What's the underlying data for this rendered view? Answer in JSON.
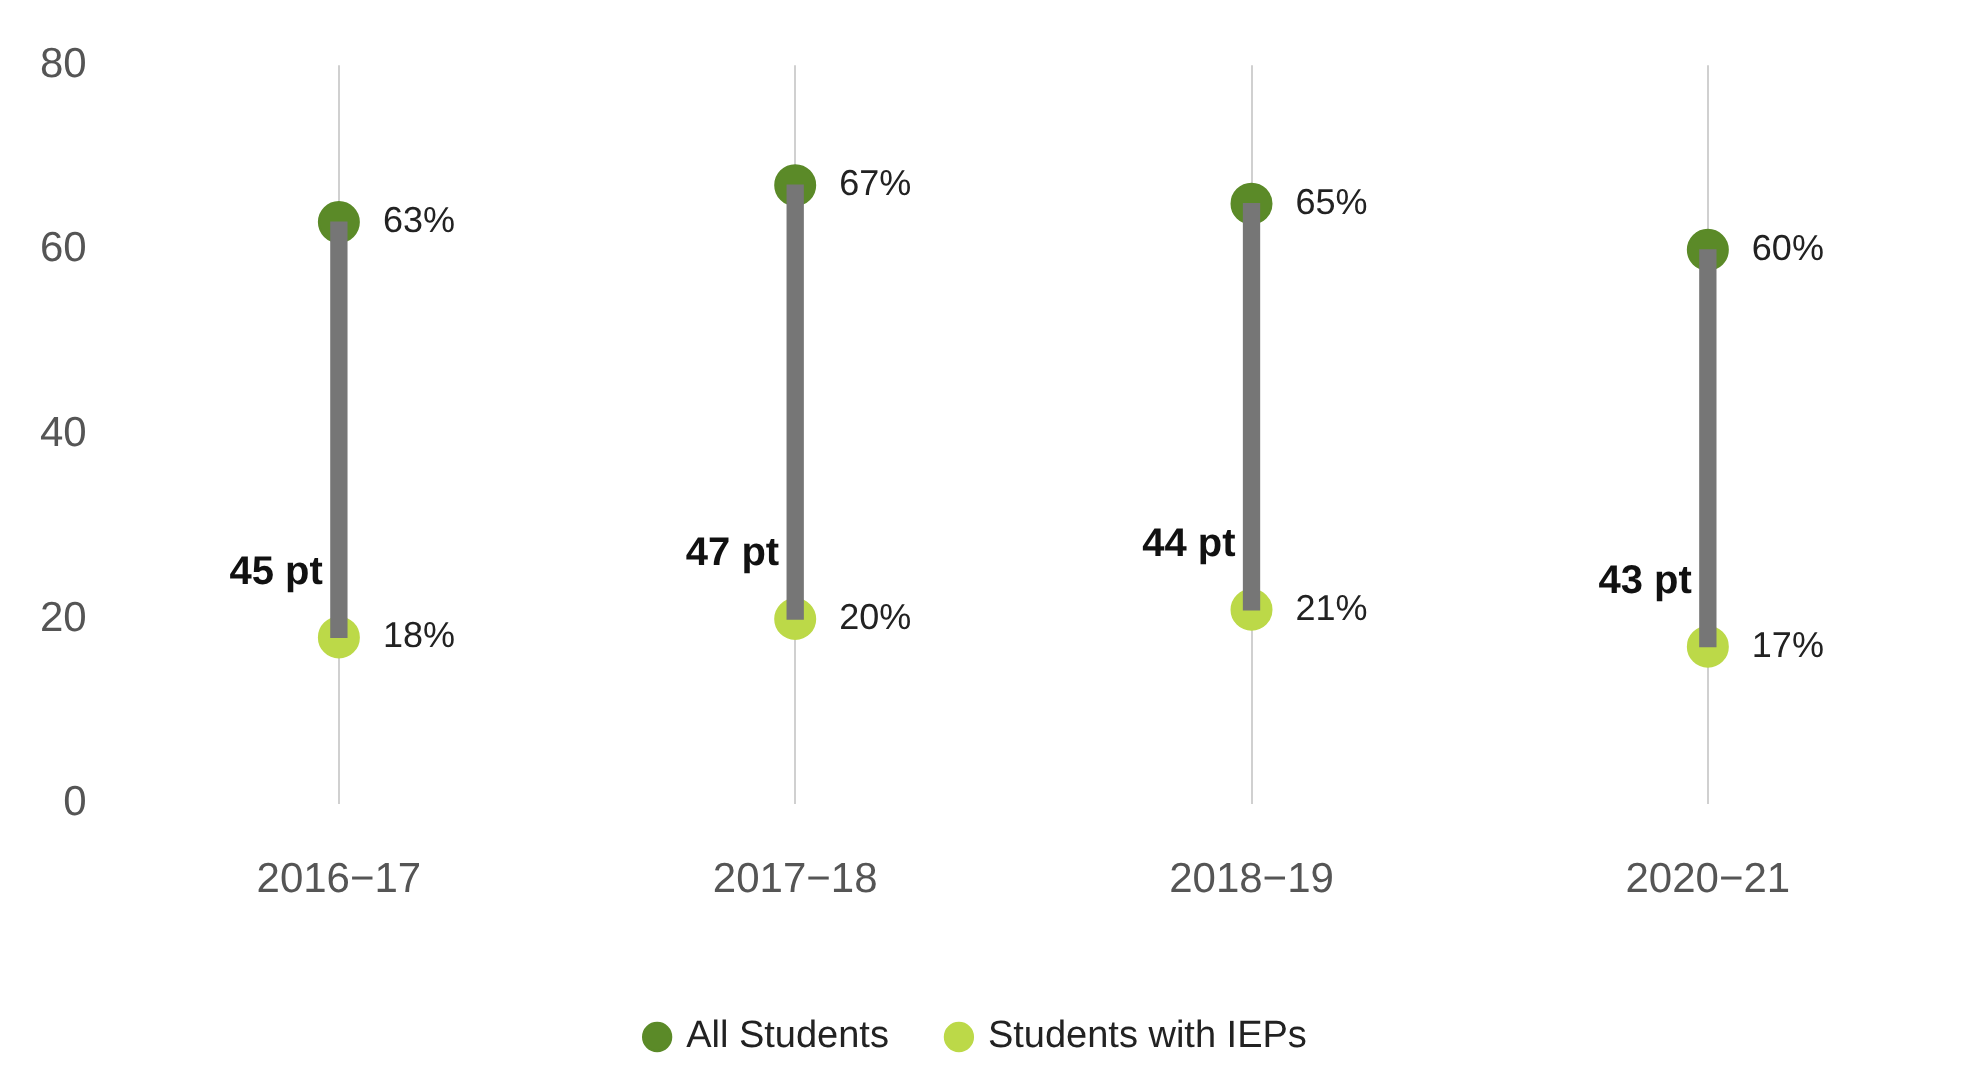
{
  "chart_data": {
    "type": "scatter",
    "categories": [
      "2016−17",
      "2017−18",
      "2018−19",
      "2020−21"
    ],
    "ylim": [
      0,
      80
    ],
    "yticks": [
      0,
      20,
      40,
      60,
      80
    ],
    "grid": "x",
    "annotations": [
      {
        "text": "45 pt",
        "x": "2016−17",
        "y": 25
      },
      {
        "text": "47 pt",
        "x": "2017−18",
        "y": 27
      },
      {
        "text": "44 pt",
        "x": "2018−19",
        "y": 28
      },
      {
        "text": "43 pt",
        "x": "2020−21",
        "y": 24
      }
    ],
    "legend": "bottom",
    "marker": "circle",
    "series": [
      {
        "type": "bar",
        "color": "#767676",
        "base": [
          18,
          20,
          21,
          17
        ],
        "values": [
          45,
          47,
          44,
          43
        ]
      },
      {
        "name": "All Students",
        "color": "#5b8a28",
        "values": [
          63,
          67,
          65,
          60
        ],
        "value_labels": [
          "63%",
          "67%",
          "65%",
          "60%"
        ]
      },
      {
        "name": "Students with IEPs",
        "color": "#bcd948",
        "values": [
          18,
          20,
          21,
          17
        ],
        "value_labels": [
          "18%",
          "20%",
          "21%",
          "17%"
        ]
      }
    ]
  }
}
